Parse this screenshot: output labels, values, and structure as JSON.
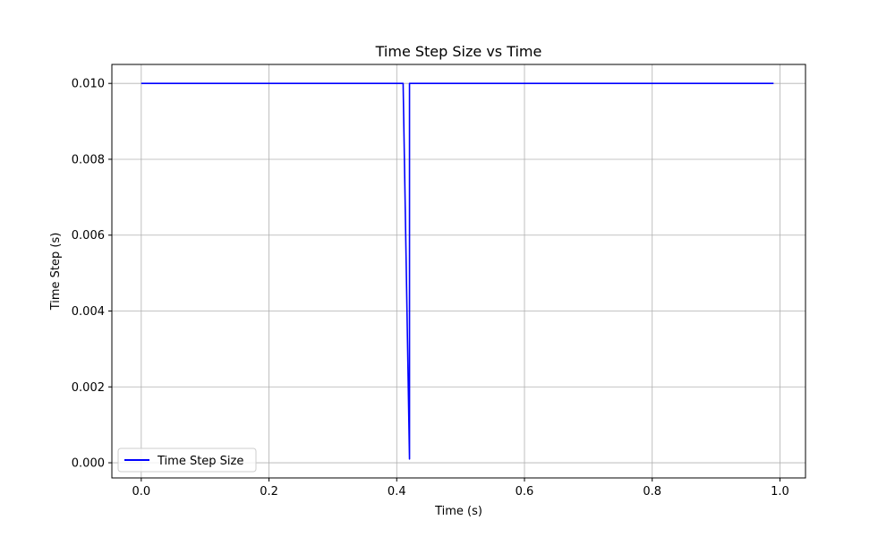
{
  "chart_data": {
    "type": "line",
    "title": "Time Step Size vs Time",
    "xlabel": "Time (s)",
    "ylabel": "Time Step (s)",
    "xlim": [
      -0.046,
      1.04
    ],
    "ylim": [
      -0.0004,
      0.0105
    ],
    "xticks": [
      0.0,
      0.2,
      0.4,
      0.6,
      0.8,
      1.0
    ],
    "xtick_labels": [
      "0.0",
      "0.2",
      "0.4",
      "0.6",
      "0.8",
      "1.0"
    ],
    "yticks": [
      0.0,
      0.002,
      0.004,
      0.006,
      0.008,
      0.01
    ],
    "ytick_labels": [
      "0.000",
      "0.002",
      "0.004",
      "0.006",
      "0.008",
      "0.010"
    ],
    "grid": true,
    "legend_position": "lower-left",
    "series": [
      {
        "name": "Time Step Size",
        "color": "#0000ff",
        "x": [
          0.0,
          0.41,
          0.42,
          0.42,
          0.43,
          0.99
        ],
        "y": [
          0.01,
          0.01,
          0.0001,
          0.01,
          0.01,
          0.01
        ]
      }
    ]
  }
}
